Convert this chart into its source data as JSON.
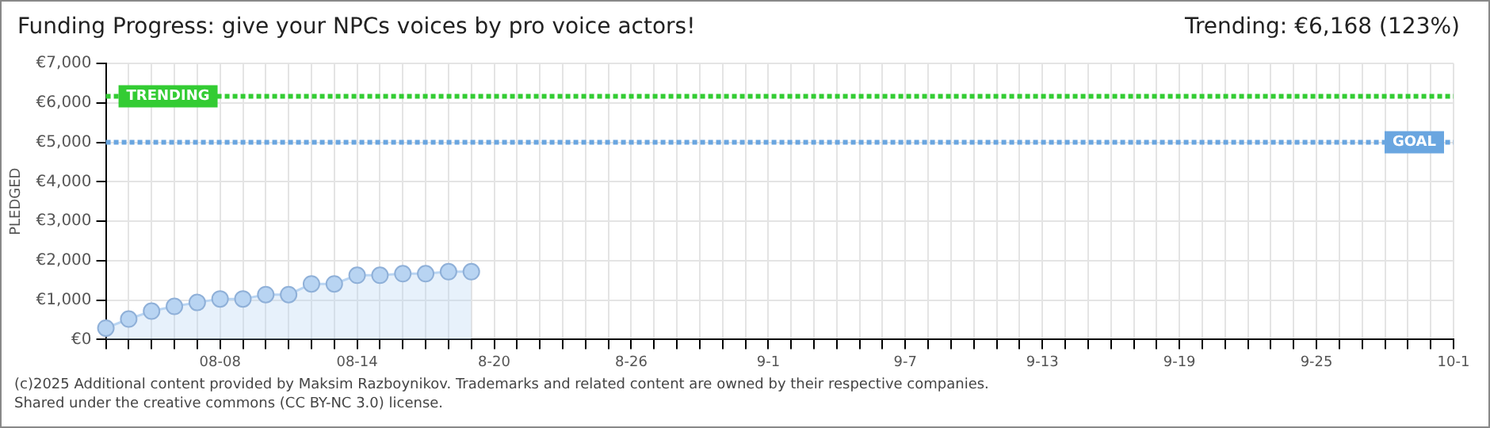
{
  "chart_data": {
    "type": "area",
    "title": "Funding Progress: give your NPCs voices by pro voice actors!",
    "subtitle": "Trending:  €6,168 (123%)",
    "ylabel": "PLEDGED",
    "categories": [
      null,
      null,
      null,
      null,
      null,
      "08-08",
      null,
      null,
      null,
      null,
      null,
      "08-14",
      null,
      null,
      null,
      null,
      null,
      "8-20",
      null,
      null,
      null,
      null,
      null,
      "8-26",
      null,
      null,
      null,
      null,
      null,
      "9-1",
      null,
      null,
      null,
      null,
      null,
      "9-7",
      null,
      null,
      null,
      null,
      null,
      "9-13",
      null,
      null,
      null,
      null,
      null,
      "9-19",
      null,
      null,
      null,
      null,
      null,
      "9-25",
      null,
      null,
      null,
      null,
      null,
      "10-1"
    ],
    "series": [
      {
        "color": "#b8d4f2",
        "values": [
          290,
          520,
          720,
          840,
          940,
          1030,
          1030,
          1140,
          1140,
          1410,
          1410,
          1630,
          1630,
          1670,
          1670,
          1720,
          1720,
          null,
          null,
          null,
          null,
          null,
          null,
          null,
          null,
          null,
          null,
          null,
          null,
          null,
          null,
          null,
          null,
          null,
          null,
          null,
          null,
          null,
          null,
          null,
          null,
          null,
          null,
          null,
          null,
          null,
          null,
          null,
          null,
          null,
          null,
          null,
          null,
          null,
          null,
          null,
          null,
          null,
          null,
          null
        ]
      }
    ],
    "ylim": [
      0,
      7000
    ],
    "yticks": [
      {
        "value": 0,
        "label": "€0"
      },
      {
        "value": 1000,
        "label": "€1,000"
      },
      {
        "value": 2000,
        "label": "€2,000"
      },
      {
        "value": 3000,
        "label": "€3,000"
      },
      {
        "value": 4000,
        "label": "€4,000"
      },
      {
        "value": 5000,
        "label": "€5,000"
      },
      {
        "value": 6000,
        "label": "€6,000"
      },
      {
        "value": 7000,
        "label": "€7,000"
      }
    ],
    "ref_lines": [
      {
        "axis": "y",
        "value": 6168,
        "label": "TRENDING",
        "color": "#33cc33",
        "line_style": "dotted"
      },
      {
        "axis": "y",
        "value": 5000,
        "label": "GOAL",
        "color": "#6aa6e0",
        "line_style": "dotted"
      }
    ],
    "grid": true,
    "marker": "circle",
    "legend": false,
    "annotations": [
      "(c)2025 Additional content provided by Maksim Razboynikov. Trademarks and related content are owned by their respective companies.",
      "Shared under the creative commons (CC BY-NC 3.0) license."
    ]
  }
}
